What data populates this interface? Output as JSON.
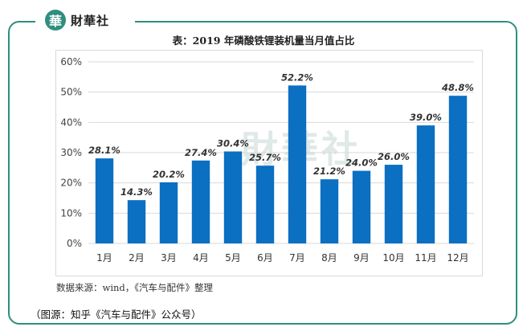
{
  "logo": {
    "mark": "華",
    "text": "財華社"
  },
  "title": "表：2019 年磷酸铁锂装机量当月值占比",
  "watermark": "財華社",
  "source": "数据来源：wind，《汽车与配件》整理",
  "caption": "（图源：知乎《汽车与配件》公众号）",
  "colors": {
    "bar": "#0b6fc2",
    "frame": "#2f8e7e",
    "grid": "#d9d9d9"
  },
  "chart_data": {
    "type": "bar",
    "title": "表：2019 年磷酸铁锂装机量当月值占比",
    "categories": [
      "1月",
      "2月",
      "3月",
      "4月",
      "5月",
      "6月",
      "7月",
      "8月",
      "9月",
      "10月",
      "11月",
      "12月"
    ],
    "values": [
      28.1,
      14.3,
      20.2,
      27.4,
      30.4,
      25.7,
      52.2,
      21.2,
      24.0,
      26.0,
      39.0,
      48.8
    ],
    "value_labels": [
      "28.1%",
      "14.3%",
      "20.2%",
      "27.4%",
      "30.4%",
      "25.7%",
      "52.2%",
      "21.2%",
      "24.0%",
      "26.0%",
      "39.0%",
      "48.8%"
    ],
    "y_ticks": [
      "0%",
      "10%",
      "20%",
      "30%",
      "40%",
      "50%",
      "60%"
    ],
    "ylim": [
      0,
      60
    ],
    "grid": true,
    "legend": "none"
  }
}
